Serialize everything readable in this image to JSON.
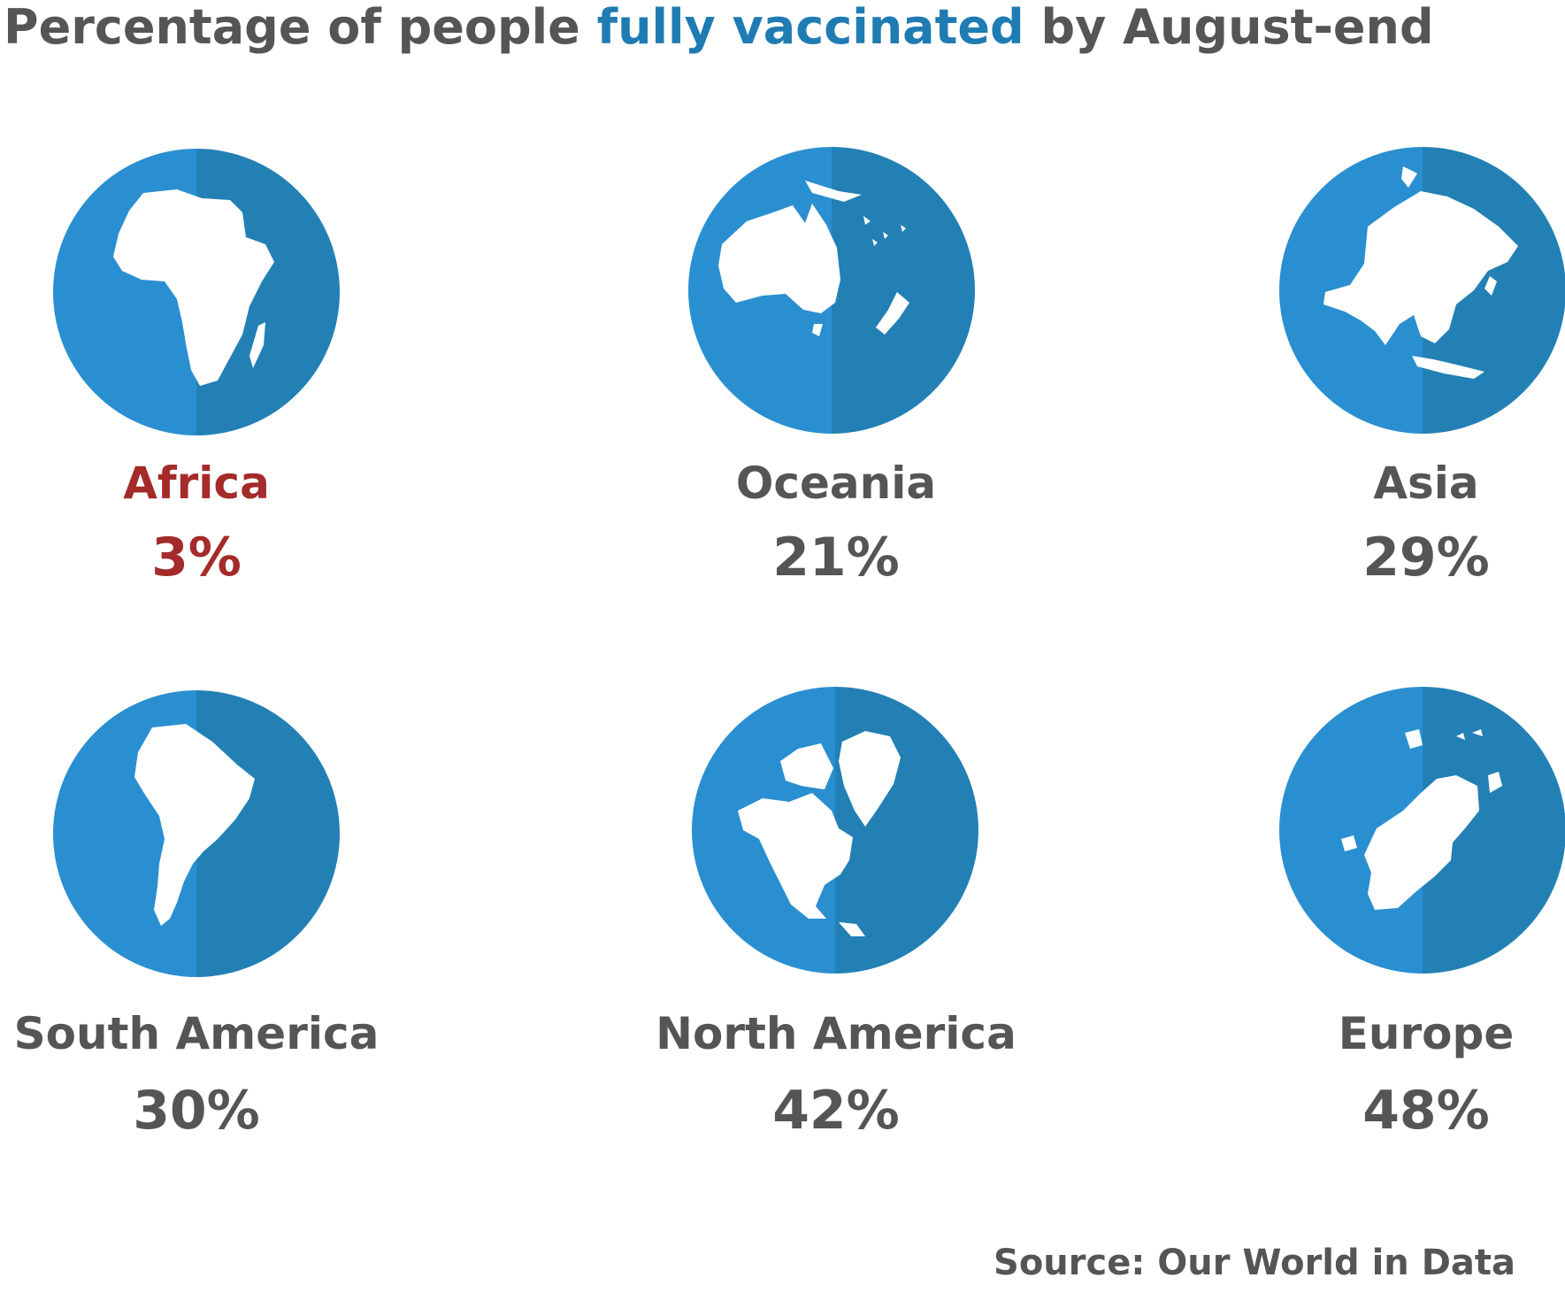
{
  "title": {
    "prefix": "Percentage of people ",
    "highlight": "fully vaccinated",
    "suffix": " by August-end"
  },
  "colors": {
    "text": "#555555",
    "highlight": "#1f7cb3",
    "emphasis": "#a52a2a",
    "globe_light": "#2a8fd1",
    "globe_dark": "#2380b5",
    "land": "#ffffff"
  },
  "chart_data": {
    "type": "table",
    "unit": "%",
    "categories": [
      "Africa",
      "Oceania",
      "Asia",
      "South America",
      "North America",
      "Europe"
    ],
    "values": [
      3,
      21,
      29,
      30,
      42,
      48
    ],
    "value_labels": [
      "3%",
      "21%",
      "29%",
      "30%",
      "42%",
      "48%"
    ],
    "highlighted_category": "Africa"
  },
  "regions": [
    {
      "name": "Africa",
      "value": "3%",
      "icon": "africa-globe-icon",
      "emphasis": true
    },
    {
      "name": "Oceania",
      "value": "21%",
      "icon": "oceania-globe-icon",
      "emphasis": false
    },
    {
      "name": "Asia",
      "value": "29%",
      "icon": "asia-globe-icon",
      "emphasis": false
    },
    {
      "name": "South America",
      "value": "30%",
      "icon": "south-america-globe-icon",
      "emphasis": false
    },
    {
      "name": "North America",
      "value": "42%",
      "icon": "north-america-globe-icon",
      "emphasis": false
    },
    {
      "name": "Europe",
      "value": "48%",
      "icon": "europe-globe-icon",
      "emphasis": false
    }
  ],
  "source": "Source: Our World in Data"
}
